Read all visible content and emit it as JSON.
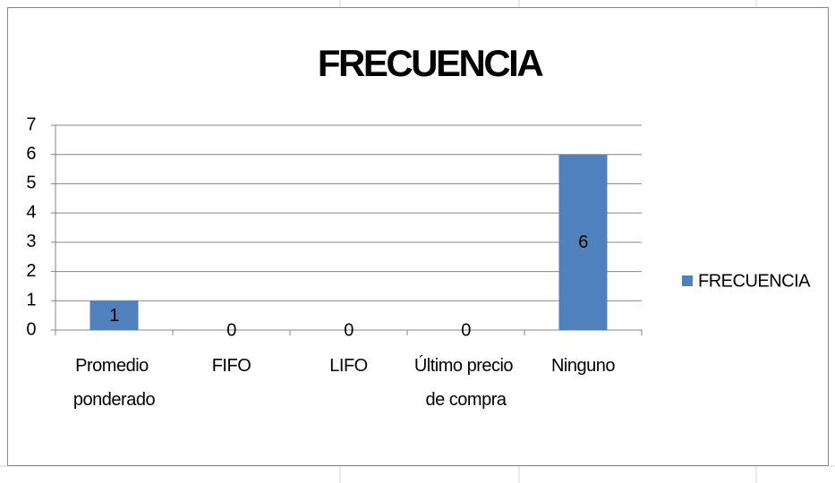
{
  "chart_data": {
    "type": "bar",
    "title": "FRECUENCIA",
    "categories": [
      "Promedio ponderado",
      "FIFO",
      "LIFO",
      "Último precio de compra",
      "Ninguno"
    ],
    "series": [
      {
        "name": "FRECUENCIA",
        "color": "#4f81bd",
        "values": [
          1,
          0,
          0,
          0,
          6
        ]
      }
    ],
    "ylim": [
      0,
      7
    ],
    "yticks": [
      0,
      1,
      2,
      3,
      4,
      5,
      6,
      7
    ],
    "grid": true,
    "legend": "right"
  }
}
